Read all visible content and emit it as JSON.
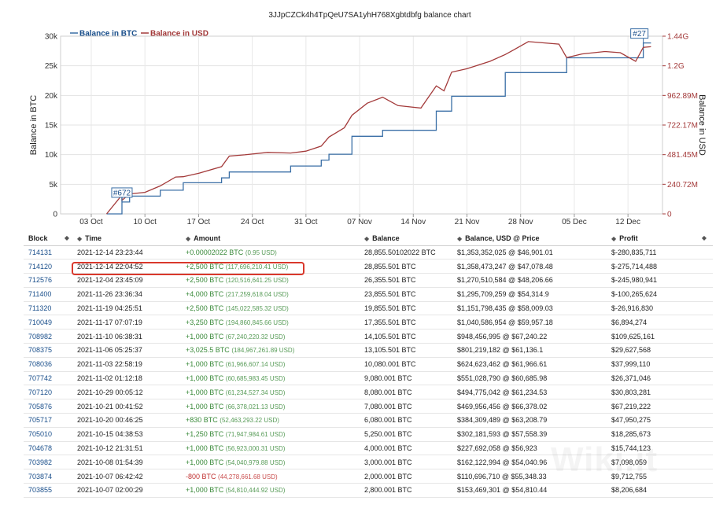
{
  "page": {
    "title": "3JJpCZCk4h4TpQeU7SA1yhH768Xgbtdbfg balance chart",
    "watermark": "Wiki.it"
  },
  "colors": {
    "btc": "#3a6fa6",
    "usd": "#a33a3a",
    "label_blue": "#1a4f8b",
    "positive": "#3a8a3a",
    "negative": "#c03030",
    "highlight": "#d9382c"
  },
  "chart_data": {
    "type": "line",
    "title": "3JJpCZCk4h4TpQeU7SA1yhH768Xgbtdbfg balance chart",
    "ylabel": "Balance in BTC",
    "y2label": "Balance in USD",
    "ylim": [
      0,
      30000
    ],
    "y2lim": [
      0,
      1444320000
    ],
    "x_ticks": [
      "03 Oct",
      "10 Oct",
      "17 Oct",
      "24 Oct",
      "31 Oct",
      "07 Nov",
      "14 Nov",
      "21 Nov",
      "28 Nov",
      "05 Dec",
      "12 Dec"
    ],
    "y_ticks": [
      "0",
      "5k",
      "10k",
      "15k",
      "20k",
      "25k",
      "30k"
    ],
    "y2_ticks": [
      "0",
      "240.72M",
      "481.45M",
      "722.17M",
      "962.89M",
      "1.2G",
      "1.44G"
    ],
    "legend": [
      "Balance in BTC",
      "Balance in USD"
    ],
    "legend_position": "top-left",
    "annotations": [
      {
        "label": "#672",
        "x": "2021-10-07"
      },
      {
        "label": "#27",
        "x": "2021-12-14"
      }
    ],
    "series": [
      {
        "name": "Balance in BTC",
        "x": [
          "2021-10-05",
          "2021-10-07",
          "2021-10-07",
          "2021-10-08",
          "2021-10-12",
          "2021-10-15",
          "2021-10-20",
          "2021-10-21",
          "2021-10-29",
          "2021-11-02",
          "2021-11-03",
          "2021-11-06",
          "2021-11-10",
          "2021-11-17",
          "2021-11-19",
          "2021-11-26",
          "2021-12-04",
          "2021-12-14",
          "2021-12-15"
        ],
        "values": [
          0,
          2800,
          2000,
          3000,
          4000,
          5250,
          6080,
          7080,
          8080,
          9080,
          10080,
          13105,
          14105,
          17355,
          19855,
          23855,
          26355,
          28855,
          28855
        ]
      },
      {
        "name": "Balance in USD",
        "x": [
          "2021-10-05",
          "2021-10-07",
          "2021-10-07",
          "2021-10-08",
          "2021-10-10",
          "2021-10-12",
          "2021-10-14",
          "2021-10-15",
          "2021-10-17",
          "2021-10-20",
          "2021-10-21",
          "2021-10-23",
          "2021-10-26",
          "2021-10-29",
          "2021-10-31",
          "2021-11-02",
          "2021-11-03",
          "2021-11-05",
          "2021-11-06",
          "2021-11-08",
          "2021-11-10",
          "2021-11-12",
          "2021-11-15",
          "2021-11-17",
          "2021-11-18",
          "2021-11-19",
          "2021-11-21",
          "2021-11-24",
          "2021-11-26",
          "2021-11-27",
          "2021-11-29",
          "2021-12-01",
          "2021-12-03",
          "2021-12-04",
          "2021-12-06",
          "2021-12-09",
          "2021-12-11",
          "2021-12-13",
          "2021-12-14",
          "2021-12-15"
        ],
        "values": [
          0,
          153469301,
          110696710,
          162122994,
          175000000,
          227692058,
          300000000,
          302181593,
          330000000,
          384309489,
          469956456,
          480000000,
          500000000,
          494775042,
          510000000,
          551028790,
          624623462,
          700000000,
          801219182,
          900000000,
          948456995,
          880000000,
          860000000,
          1040586954,
          1000000000,
          1151798435,
          1180000000,
          1240000000,
          1295709259,
          1330000000,
          1400000000,
          1390000000,
          1380000000,
          1270510584,
          1300000000,
          1320000000,
          1310000000,
          1240000000,
          1353352025,
          1358473247
        ]
      }
    ]
  },
  "table": {
    "headers": {
      "block": "Block",
      "time": "Time",
      "amount": "Amount",
      "balance": "Balance",
      "balance_usd": "Balance, USD @ Price",
      "profit": "Profit"
    },
    "sort_glyph": "◆",
    "rows": [
      {
        "block": "714131",
        "time": "2021-12-14 23:23:44",
        "amount": "+0.00002022 BTC",
        "amount_usd": "(0.95 USD)",
        "balance": "28,855.50102022 BTC",
        "balance_usd": "$1,353,352,025 @ $46,901.01",
        "profit": "$-280,835,711"
      },
      {
        "block": "714120",
        "time": "2021-12-14 22:04:52",
        "amount": "+2,500 BTC",
        "amount_usd": "(117,696,210.41 USD)",
        "balance": "28,855.501 BTC",
        "balance_usd": "$1,358,473,247 @ $47,078.48",
        "profit": "$-275,714,488"
      },
      {
        "block": "712576",
        "time": "2021-12-04 23:45:09",
        "amount": "+2,500 BTC",
        "amount_usd": "(120,516,641.25 USD)",
        "balance": "26,355.501 BTC",
        "balance_usd": "$1,270,510,584 @ $48,206.66",
        "profit": "$-245,980,941"
      },
      {
        "block": "711400",
        "time": "2021-11-26 23:36:34",
        "amount": "+4,000 BTC",
        "amount_usd": "(217,259,618.04 USD)",
        "balance": "23,855.501 BTC",
        "balance_usd": "$1,295,709,259 @ $54,314.9",
        "profit": "$-100,265,624"
      },
      {
        "block": "711320",
        "time": "2021-11-19 04:25:51",
        "amount": "+2,500 BTC",
        "amount_usd": "(145,022,585.32 USD)",
        "balance": "19,855.501 BTC",
        "balance_usd": "$1,151,798,435 @ $58,009.03",
        "profit": "$-26,916,830"
      },
      {
        "block": "710049",
        "time": "2021-11-17 07:07:19",
        "amount": "+3,250 BTC",
        "amount_usd": "(194,860,845.66 USD)",
        "balance": "17,355.501 BTC",
        "balance_usd": "$1,040,586,954 @ $59,957.18",
        "profit": "$6,894,274"
      },
      {
        "block": "708982",
        "time": "2021-11-10 06:38:31",
        "amount": "+1,000 BTC",
        "amount_usd": "(67,240,220.32 USD)",
        "balance": "14,105.501 BTC",
        "balance_usd": "$948,456,995 @ $67,240.22",
        "profit": "$109,625,161"
      },
      {
        "block": "708375",
        "time": "2021-11-06 05:25:37",
        "amount": "+3,025.5 BTC",
        "amount_usd": "(184,967,261.89 USD)",
        "balance": "13,105.501 BTC",
        "balance_usd": "$801,219,182 @ $61,136.1",
        "profit": "$29,627,568"
      },
      {
        "block": "708036",
        "time": "2021-11-03 22:58:19",
        "amount": "+1,000 BTC",
        "amount_usd": "(61,966,607.14 USD)",
        "balance": "10,080.001 BTC",
        "balance_usd": "$624,623,462 @ $61,966.61",
        "profit": "$37,999,110"
      },
      {
        "block": "707742",
        "time": "2021-11-02 01:12:18",
        "amount": "+1,000 BTC",
        "amount_usd": "(60,685,983.45 USD)",
        "balance": "9,080.001 BTC",
        "balance_usd": "$551,028,790 @ $60,685.98",
        "profit": "$26,371,046"
      },
      {
        "block": "707120",
        "time": "2021-10-29 00:05:12",
        "amount": "+1,000 BTC",
        "amount_usd": "(61,234,527.34 USD)",
        "balance": "8,080.001 BTC",
        "balance_usd": "$494,775,042 @ $61,234.53",
        "profit": "$30,803,281"
      },
      {
        "block": "705876",
        "time": "2021-10-21 00:41:52",
        "amount": "+1,000 BTC",
        "amount_usd": "(66,378,021.13 USD)",
        "balance": "7,080.001 BTC",
        "balance_usd": "$469,956,456 @ $66,378.02",
        "profit": "$67,219,222"
      },
      {
        "block": "705717",
        "time": "2021-10-20 00:46:25",
        "amount": "+830 BTC",
        "amount_usd": "(52,463,293.22 USD)",
        "balance": "6,080.001 BTC",
        "balance_usd": "$384,309,489 @ $63,208.79",
        "profit": "$47,950,275"
      },
      {
        "block": "705010",
        "time": "2021-10-15 04:38:53",
        "amount": "+1,250 BTC",
        "amount_usd": "(71,947,984.61 USD)",
        "balance": "5,250.001 BTC",
        "balance_usd": "$302,181,593 @ $57,558.39",
        "profit": "$18,285,673"
      },
      {
        "block": "704678",
        "time": "2021-10-12 21:31:51",
        "amount": "+1,000 BTC",
        "amount_usd": "(56,923,000.31 USD)",
        "balance": "4,000.001 BTC",
        "balance_usd": "$227,692,058 @ $56,923",
        "profit": "$15,744,123"
      },
      {
        "block": "703982",
        "time": "2021-10-08 01:54:39",
        "amount": "+1,000 BTC",
        "amount_usd": "(54,040,979.88 USD)",
        "balance": "3,000.001 BTC",
        "balance_usd": "$162,122,994 @ $54,040.96",
        "profit": "$7,098,059"
      },
      {
        "block": "703874",
        "time": "2021-10-07 06:42:42",
        "amount": "-800 BTC",
        "amount_usd": "(44,278,661.68 USD)",
        "balance": "2,000.001 BTC",
        "balance_usd": "$110,696,710 @ $55,348.33",
        "profit": "$9,712,755",
        "negative": true
      },
      {
        "block": "703855",
        "time": "2021-10-07 02:00:29",
        "amount": "+1,000 BTC",
        "amount_usd": "(54,810,444.92 USD)",
        "balance": "2,800.001 BTC",
        "balance_usd": "$153,469,301 @ $54,810.44",
        "profit": "$8,206,684"
      }
    ]
  }
}
